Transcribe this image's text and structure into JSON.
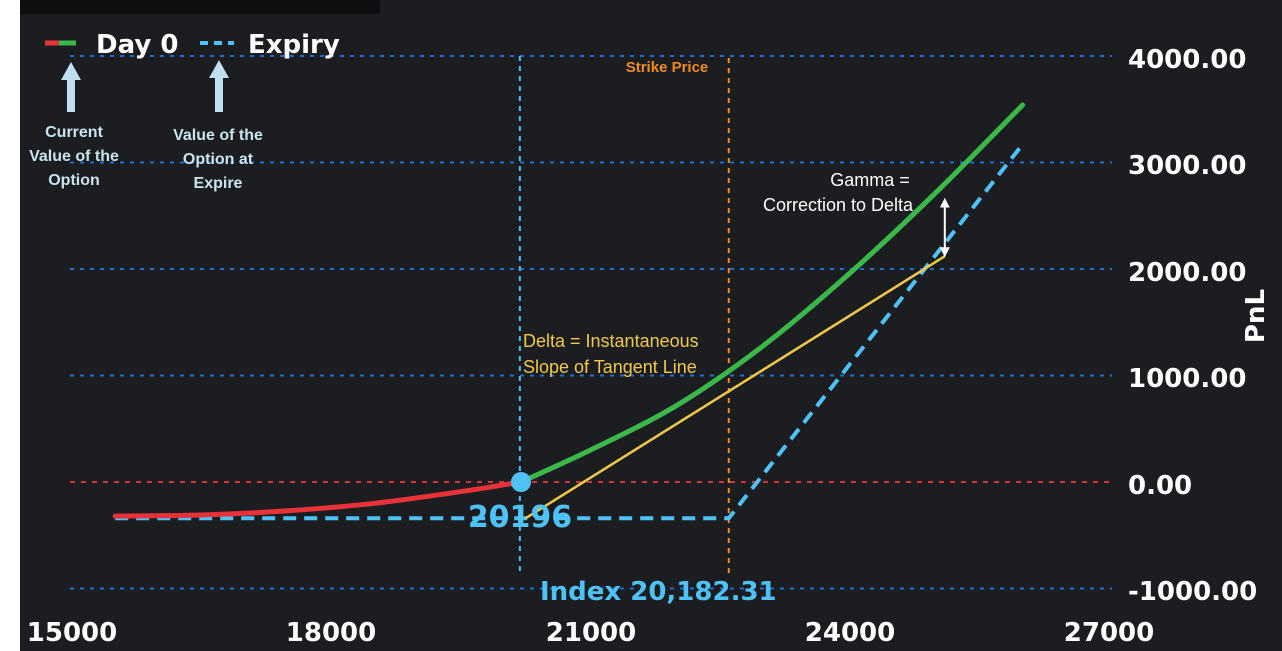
{
  "chart_data": {
    "type": "line",
    "title": "",
    "xlabel": "",
    "ylabel": "PnL",
    "xlim": [
      15000,
      27000
    ],
    "ylim": [
      -1000,
      4000
    ],
    "x_ticks": [
      "15000",
      "18000",
      "21000",
      "24000",
      "27000"
    ],
    "y_ticks": [
      "4000.00",
      "3000.00",
      "2000.00",
      "1000.00",
      "0.00",
      "-1000.00"
    ],
    "strike_price": 22600,
    "index_value": 20182.31,
    "marker": {
      "x": 20196,
      "y": 0,
      "label": "20196"
    },
    "index_label": "Index 20,182.31",
    "strike_label": "Strike Price",
    "legend": [
      {
        "name": "Day 0",
        "style": "solid red/green",
        "colors": [
          "#e8323a",
          "#3cb84a"
        ]
      },
      {
        "name": "Expiry",
        "style": "dashed",
        "color": "#4fc3f7"
      }
    ],
    "series": [
      {
        "name": "Day 0",
        "x": [
          15500,
          16500,
          17500,
          18500,
          19500,
          20196,
          21000,
          22000,
          23000,
          24000,
          25000,
          26000
        ],
        "y": [
          -320,
          -310,
          -270,
          -200,
          -90,
          0,
          300,
          720,
          1280,
          1960,
          2720,
          3540
        ]
      },
      {
        "name": "Expiry",
        "x": [
          15500,
          22600,
          26000
        ],
        "y": [
          -340,
          -340,
          3170
        ]
      }
    ],
    "tangent_line": {
      "x": [
        20250,
        25100
      ],
      "y": [
        -340,
        2120
      ]
    },
    "annotations": {
      "day0_note": [
        "Current",
        "Value of the",
        "Option"
      ],
      "expiry_note": [
        "Value of the",
        "Option at",
        "Expire"
      ],
      "delta_note": [
        "Delta = Instantaneous",
        "Slope of Tangent Line"
      ],
      "gamma_note": [
        "Gamma =",
        "Correction to Delta"
      ]
    },
    "colors": {
      "background": "#1b1d21",
      "grid": "#1f6fd0",
      "zero_line": "#d6333b",
      "strike": "#f08a24",
      "day0_loss": "#e8323a",
      "day0_profit": "#3cb84a",
      "expiry": "#4fc3f7",
      "tangent": "#f0c84a",
      "text": "#ffffff",
      "note_text": "#c9e4ee"
    },
    "grid": true,
    "legend_position": "top-left"
  }
}
